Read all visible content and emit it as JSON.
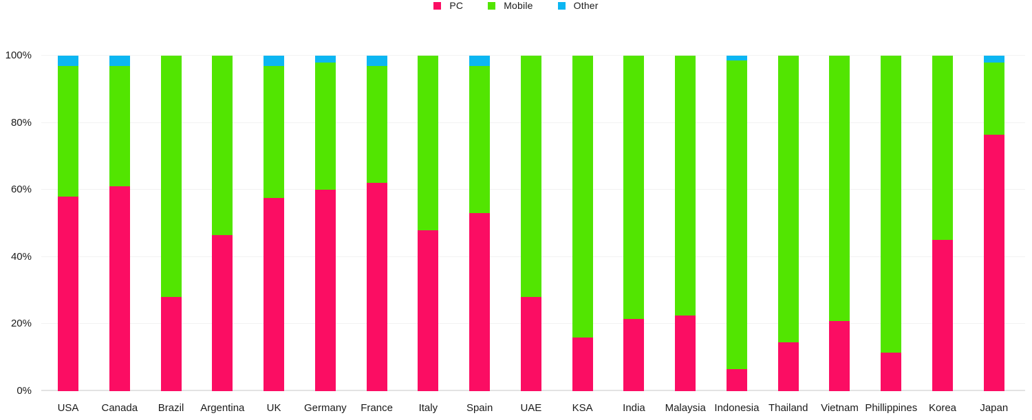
{
  "chart_data": {
    "type": "bar",
    "stacked": true,
    "percent": true,
    "title": "",
    "xlabel": "",
    "ylabel": "",
    "ylim": [
      0,
      100
    ],
    "grid": true,
    "legend_position": "top-center",
    "categories": [
      "USA",
      "Canada",
      "Brazil",
      "Argentina",
      "UK",
      "Germany",
      "France",
      "Italy",
      "Spain",
      "UAE",
      "KSA",
      "India",
      "Malaysia",
      "Indonesia",
      "Thailand",
      "Vietnam",
      "Phillippines",
      "Korea",
      "Japan"
    ],
    "series": [
      {
        "name": "PC",
        "color": "#FB0D63",
        "values": [
          58,
          61,
          28,
          46.5,
          57.5,
          60,
          62,
          48,
          53,
          28,
          16,
          21.5,
          22.5,
          6.5,
          14.5,
          21,
          11.5,
          45,
          76.5
        ]
      },
      {
        "name": "Mobile",
        "color": "#52E501",
        "values": [
          39,
          36,
          72,
          53.5,
          39.5,
          38,
          35,
          52,
          44,
          72,
          84,
          78.5,
          77.5,
          92,
          85.5,
          79,
          88.5,
          55,
          21.5
        ]
      },
      {
        "name": "Other",
        "color": "#0CB6F2",
        "values": [
          3,
          3,
          0,
          0,
          3,
          2,
          3,
          0,
          3,
          0,
          0,
          0,
          0,
          1.5,
          0,
          0,
          0,
          0,
          2
        ]
      }
    ],
    "yticks": [
      {
        "value": 0,
        "label": "0%"
      },
      {
        "value": 20,
        "label": "20%"
      },
      {
        "value": 40,
        "label": "40%"
      },
      {
        "value": 60,
        "label": "60%"
      },
      {
        "value": 80,
        "label": "80%"
      },
      {
        "value": 100,
        "label": "100%"
      }
    ],
    "colors": {
      "background": "#ffffff",
      "gridline": "#f2f2f2",
      "baseline": "#e3e3e3",
      "text": "#1a1a1a"
    }
  }
}
